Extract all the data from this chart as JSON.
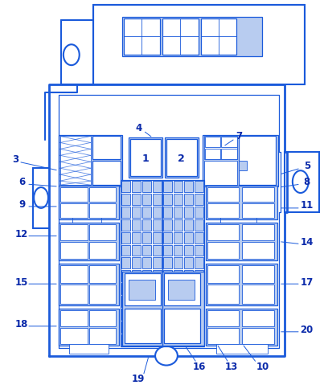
{
  "bg_color": "#ffffff",
  "line_color": "#1a5adb",
  "fill_color": "#b8ccf0",
  "label_color": "#0a2aaa",
  "lw_main": 1.5,
  "lw_inner": 0.9,
  "lw_thin": 0.6
}
